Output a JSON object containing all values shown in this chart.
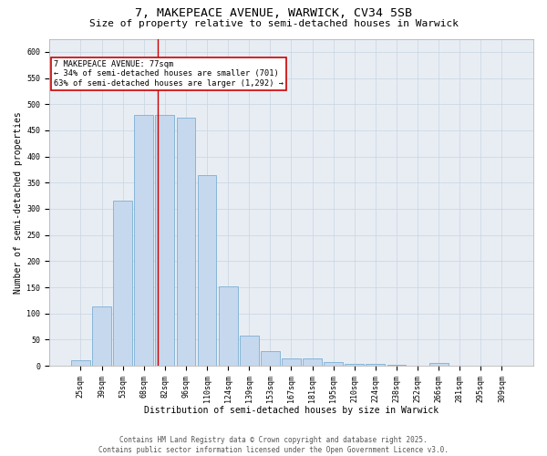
{
  "title_line1": "7, MAKEPEACE AVENUE, WARWICK, CV34 5SB",
  "title_line2": "Size of property relative to semi-detached houses in Warwick",
  "xlabel": "Distribution of semi-detached houses by size in Warwick",
  "ylabel": "Number of semi-detached properties",
  "categories": [
    "25sqm",
    "39sqm",
    "53sqm",
    "68sqm",
    "82sqm",
    "96sqm",
    "110sqm",
    "124sqm",
    "139sqm",
    "153sqm",
    "167sqm",
    "181sqm",
    "195sqm",
    "210sqm",
    "224sqm",
    "238sqm",
    "252sqm",
    "266sqm",
    "281sqm",
    "295sqm",
    "309sqm"
  ],
  "values": [
    10,
    113,
    315,
    480,
    480,
    475,
    365,
    152,
    58,
    28,
    15,
    15,
    7,
    4,
    3,
    2,
    0,
    5,
    0,
    0,
    0
  ],
  "bar_color": "#c5d8ed",
  "bar_edge_color": "#7bafd4",
  "annotation_text": "7 MAKEPEACE AVENUE: 77sqm\n← 34% of semi-detached houses are smaller (701)\n63% of semi-detached houses are larger (1,292) →",
  "annotation_box_color": "#ffffff",
  "annotation_box_edge": "#cc0000",
  "red_line_x": 3.67,
  "ylim": [
    0,
    625
  ],
  "yticks": [
    0,
    50,
    100,
    150,
    200,
    250,
    300,
    350,
    400,
    450,
    500,
    550,
    600
  ],
  "grid_color": "#c8d4e0",
  "background_color": "#e8edf4",
  "footer_line1": "Contains HM Land Registry data © Crown copyright and database right 2025.",
  "footer_line2": "Contains public sector information licensed under the Open Government Licence v3.0.",
  "title_fontsize": 9.5,
  "subtitle_fontsize": 8,
  "axis_label_fontsize": 7,
  "tick_fontsize": 6,
  "annotation_fontsize": 6.2,
  "footer_fontsize": 5.5
}
